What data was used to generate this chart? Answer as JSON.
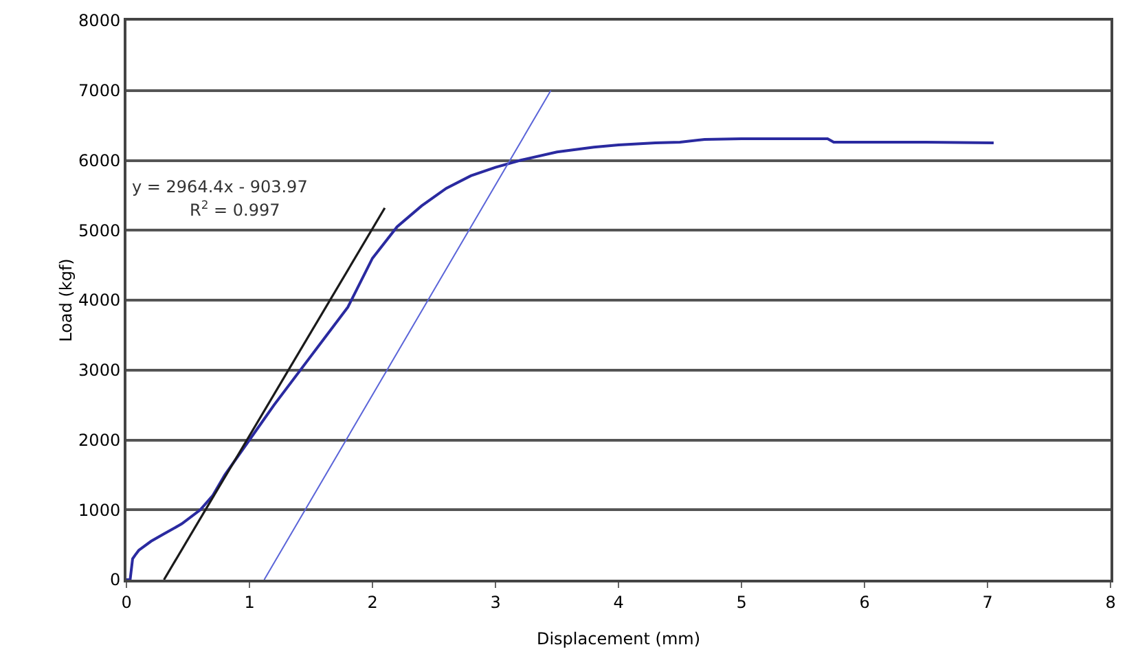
{
  "chart_data": {
    "type": "line",
    "xlabel": "Displacement (mm)",
    "ylabel": "Load (kgf)",
    "xlim": [
      0,
      8
    ],
    "xticks": [
      0,
      1,
      2,
      3,
      4,
      5,
      6,
      7,
      8
    ],
    "ylim": [
      0,
      8000
    ],
    "yticks": [
      0,
      1000,
      2000,
      3000,
      4000,
      5000,
      6000,
      7000,
      8000
    ],
    "grid": "y",
    "marker": "none",
    "line_style": "solid",
    "annotations": [
      "y = 2964.4x - 903.97",
      "R$^{2}$ = 0.997"
    ],
    "series": [
      {
        "color": "#2a2aa0",
        "x": [
          0,
          0.03,
          0.05,
          0.07,
          0.1,
          0.2,
          0.3,
          0.45,
          0.6,
          0.7,
          0.8,
          1.0,
          1.2,
          1.5,
          1.8,
          2.0,
          2.2,
          2.4,
          2.6,
          2.8,
          3.0,
          3.2,
          3.5,
          3.8,
          4.0,
          4.3,
          4.5,
          4.7,
          5.0,
          5.5,
          5.7,
          5.75,
          6.0,
          6.5,
          7.05
        ],
        "values": [
          0,
          0,
          300,
          350,
          420,
          550,
          650,
          800,
          1000,
          1200,
          1500,
          2000,
          2500,
          3200,
          3900,
          4600,
          5050,
          5350,
          5600,
          5780,
          5900,
          6000,
          6120,
          6190,
          6220,
          6250,
          6260,
          6300,
          6310,
          6310,
          6310,
          6260,
          6260,
          6260,
          6250
        ]
      },
      {
        "color": "#1a1a1a",
        "x": [
          0.305,
          2.1
        ],
        "values": [
          0,
          5320
        ]
      },
      {
        "color": "#5a64d8",
        "x": [
          1.12,
          3.45
        ],
        "values": [
          0,
          7000
        ]
      }
    ]
  }
}
